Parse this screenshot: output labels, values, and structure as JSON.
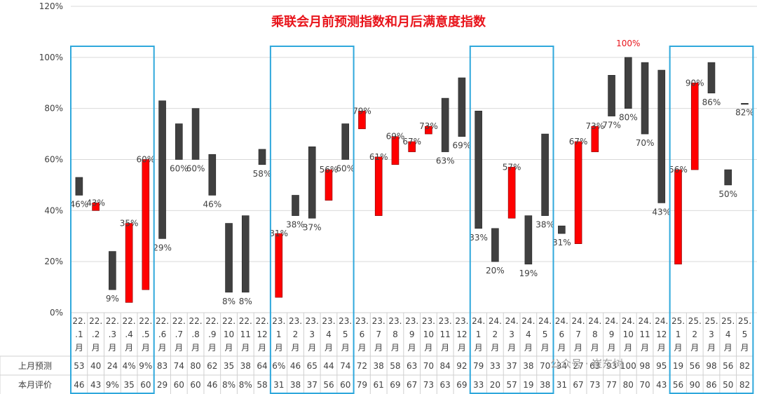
{
  "chart_data": {
    "type": "bar",
    "title": "乘联会月前预测指数和月后满意度指数",
    "yticks": [
      "0%",
      "20%",
      "40%",
      "60%",
      "80%",
      "100%",
      "120%"
    ],
    "ylim": [
      0,
      120
    ],
    "grid": true,
    "colors": {
      "positive": "#404040",
      "negative": "#ff0000",
      "highlight_box": "#2fa8dc",
      "title": "#e8141b"
    },
    "categories": [
      [
        "22.",
        ".1",
        "月"
      ],
      [
        "22.",
        ".2",
        "月"
      ],
      [
        "22.",
        ".3",
        "月"
      ],
      [
        "22.",
        ".4",
        "月"
      ],
      [
        "22.",
        ".5",
        "月"
      ],
      [
        "22.",
        ".6",
        "月"
      ],
      [
        "22.",
        ".7",
        "月"
      ],
      [
        "22.",
        ".8",
        "月"
      ],
      [
        "22.",
        ".9",
        "月"
      ],
      [
        "22.",
        "10",
        "月"
      ],
      [
        "22.",
        "11",
        "月"
      ],
      [
        "22.",
        "12",
        "月"
      ],
      [
        "23.",
        "1",
        "月"
      ],
      [
        "23.",
        "2",
        "月"
      ],
      [
        "23.",
        "3",
        "月"
      ],
      [
        "23.",
        "4",
        "月"
      ],
      [
        "23.",
        "5",
        "月"
      ],
      [
        "23.",
        "6",
        "月"
      ],
      [
        "23.",
        "7",
        "月"
      ],
      [
        "23.",
        "8",
        "月"
      ],
      [
        "23.",
        "9",
        "月"
      ],
      [
        "23.",
        "10",
        "月"
      ],
      [
        "23.",
        "11",
        "月"
      ],
      [
        "23.",
        "12",
        "月"
      ],
      [
        "24.",
        "1",
        "月"
      ],
      [
        "24.",
        "2",
        "月"
      ],
      [
        "24.",
        "3",
        "月"
      ],
      [
        "24.",
        "4",
        "月"
      ],
      [
        "24.",
        "5",
        "月"
      ],
      [
        "24.",
        "6",
        "月"
      ],
      [
        "24.",
        "7",
        "月"
      ],
      [
        "24.",
        "8",
        "月"
      ],
      [
        "24.",
        "9",
        "月"
      ],
      [
        "24.",
        "10",
        "月"
      ],
      [
        "24.",
        "11",
        "月"
      ],
      [
        "24.",
        "12",
        "月"
      ],
      [
        "25.",
        "1",
        "月"
      ],
      [
        "25.",
        "2",
        "月"
      ],
      [
        "25.",
        "3",
        "月"
      ],
      [
        "25.",
        "4",
        "月"
      ],
      [
        "25.",
        "5",
        "月"
      ]
    ],
    "series": [
      {
        "name": "上月预测",
        "values": [
          53,
          40,
          24,
          4,
          9,
          83,
          74,
          80,
          62,
          35,
          38,
          64,
          6,
          46,
          65,
          44,
          74,
          72,
          38,
          58,
          63,
          70,
          84,
          92,
          79,
          33,
          37,
          38,
          70,
          34,
          27,
          63,
          93,
          100,
          98,
          95,
          19,
          56,
          98,
          56,
          82
        ]
      },
      {
        "name": "本月评价",
        "values": [
          46,
          43,
          9,
          35,
          60,
          29,
          60,
          60,
          46,
          8,
          8,
          58,
          31,
          38,
          37,
          56,
          60,
          79,
          61,
          69,
          67,
          73,
          63,
          69,
          33,
          20,
          57,
          19,
          38,
          31,
          67,
          73,
          77,
          80,
          70,
          43,
          56,
          90,
          86,
          50,
          82
        ]
      }
    ],
    "row_labels": [
      "上月预测",
      "本月评价"
    ],
    "forecast_row": [
      "53",
      "40",
      "24",
      "4%",
      "9%",
      "83",
      "74",
      "80",
      "62",
      "35",
      "38",
      "64",
      "6%",
      "46",
      "65",
      "44",
      "74",
      "72",
      "38",
      "58",
      "63",
      "70",
      "84",
      "92",
      "79",
      "33",
      "37",
      "38",
      "70",
      "34",
      "27",
      "63",
      "93",
      "100",
      "98",
      "95",
      "19",
      "56",
      "98",
      "56",
      "82"
    ],
    "actual_row": [
      "46",
      "43",
      "9%",
      "35",
      "60",
      "29",
      "60",
      "60",
      "46",
      "8%",
      "8%",
      "58",
      "31",
      "38",
      "37",
      "56",
      "60",
      "79",
      "61",
      "69",
      "67",
      "73",
      "63",
      "69",
      "33",
      "20",
      "57",
      "19",
      "38",
      "31",
      "67",
      "73",
      "77",
      "80",
      "70",
      "43",
      "56",
      "90",
      "86",
      "50",
      "82"
    ],
    "data_labels": [
      "46%",
      "43%",
      "9%",
      "35%",
      "60%",
      "29%",
      "60%",
      "60%",
      "46%",
      "8%",
      "8%",
      "58%",
      "31%",
      "38%",
      "37%",
      "56%",
      "60%",
      "79%",
      "61%",
      "69%",
      "67%",
      "73%",
      "63%",
      "69%",
      "33%",
      "20%",
      "57%",
      "19%",
      "38%",
      "31%",
      "67%",
      "73%",
      "77%",
      "80%",
      "70%",
      "43%",
      "56%",
      "90%",
      "86%",
      "50%",
      "82%"
    ],
    "extra_labels": [
      {
        "text": "100%",
        "index": 33
      }
    ],
    "highlight_groups": [
      [
        0,
        4
      ],
      [
        12,
        16
      ],
      [
        24,
        28
      ],
      [
        36,
        40
      ]
    ],
    "watermark": "公众号 · 崔东树"
  }
}
